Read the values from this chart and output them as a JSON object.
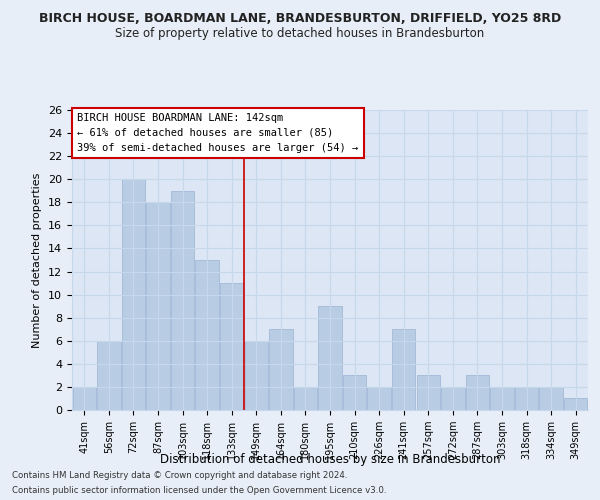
{
  "title": "BIRCH HOUSE, BOARDMAN LANE, BRANDESBURTON, DRIFFIELD, YO25 8RD",
  "subtitle": "Size of property relative to detached houses in Brandesburton",
  "xlabel": "Distribution of detached houses by size in Brandesburton",
  "ylabel": "Number of detached properties",
  "footnote1": "Contains HM Land Registry data © Crown copyright and database right 2024.",
  "footnote2": "Contains public sector information licensed under the Open Government Licence v3.0.",
  "categories": [
    "41sqm",
    "56sqm",
    "72sqm",
    "87sqm",
    "103sqm",
    "118sqm",
    "133sqm",
    "149sqm",
    "164sqm",
    "180sqm",
    "195sqm",
    "210sqm",
    "226sqm",
    "241sqm",
    "257sqm",
    "272sqm",
    "287sqm",
    "303sqm",
    "318sqm",
    "334sqm",
    "349sqm"
  ],
  "values": [
    2,
    6,
    20,
    18,
    19,
    13,
    11,
    6,
    7,
    2,
    9,
    3,
    2,
    7,
    3,
    2,
    3,
    2,
    2,
    2,
    1
  ],
  "bar_color": "#b8cce4",
  "bar_edge_color": "#9ab3d5",
  "ylim": [
    0,
    26
  ],
  "yticks": [
    0,
    2,
    4,
    6,
    8,
    10,
    12,
    14,
    16,
    18,
    20,
    22,
    24,
    26
  ],
  "ref_line_index": 6.5,
  "ref_line_color": "#cc0000",
  "legend_title": "BIRCH HOUSE BOARDMAN LANE: 142sqm",
  "legend_line1": "← 61% of detached houses are smaller (85)",
  "legend_line2": "39% of semi-detached houses are larger (54) →",
  "legend_box_color": "#cc0000",
  "background_color": "#e8eef7",
  "plot_background": "#dce6f4",
  "grid_color": "#c8d8ec"
}
